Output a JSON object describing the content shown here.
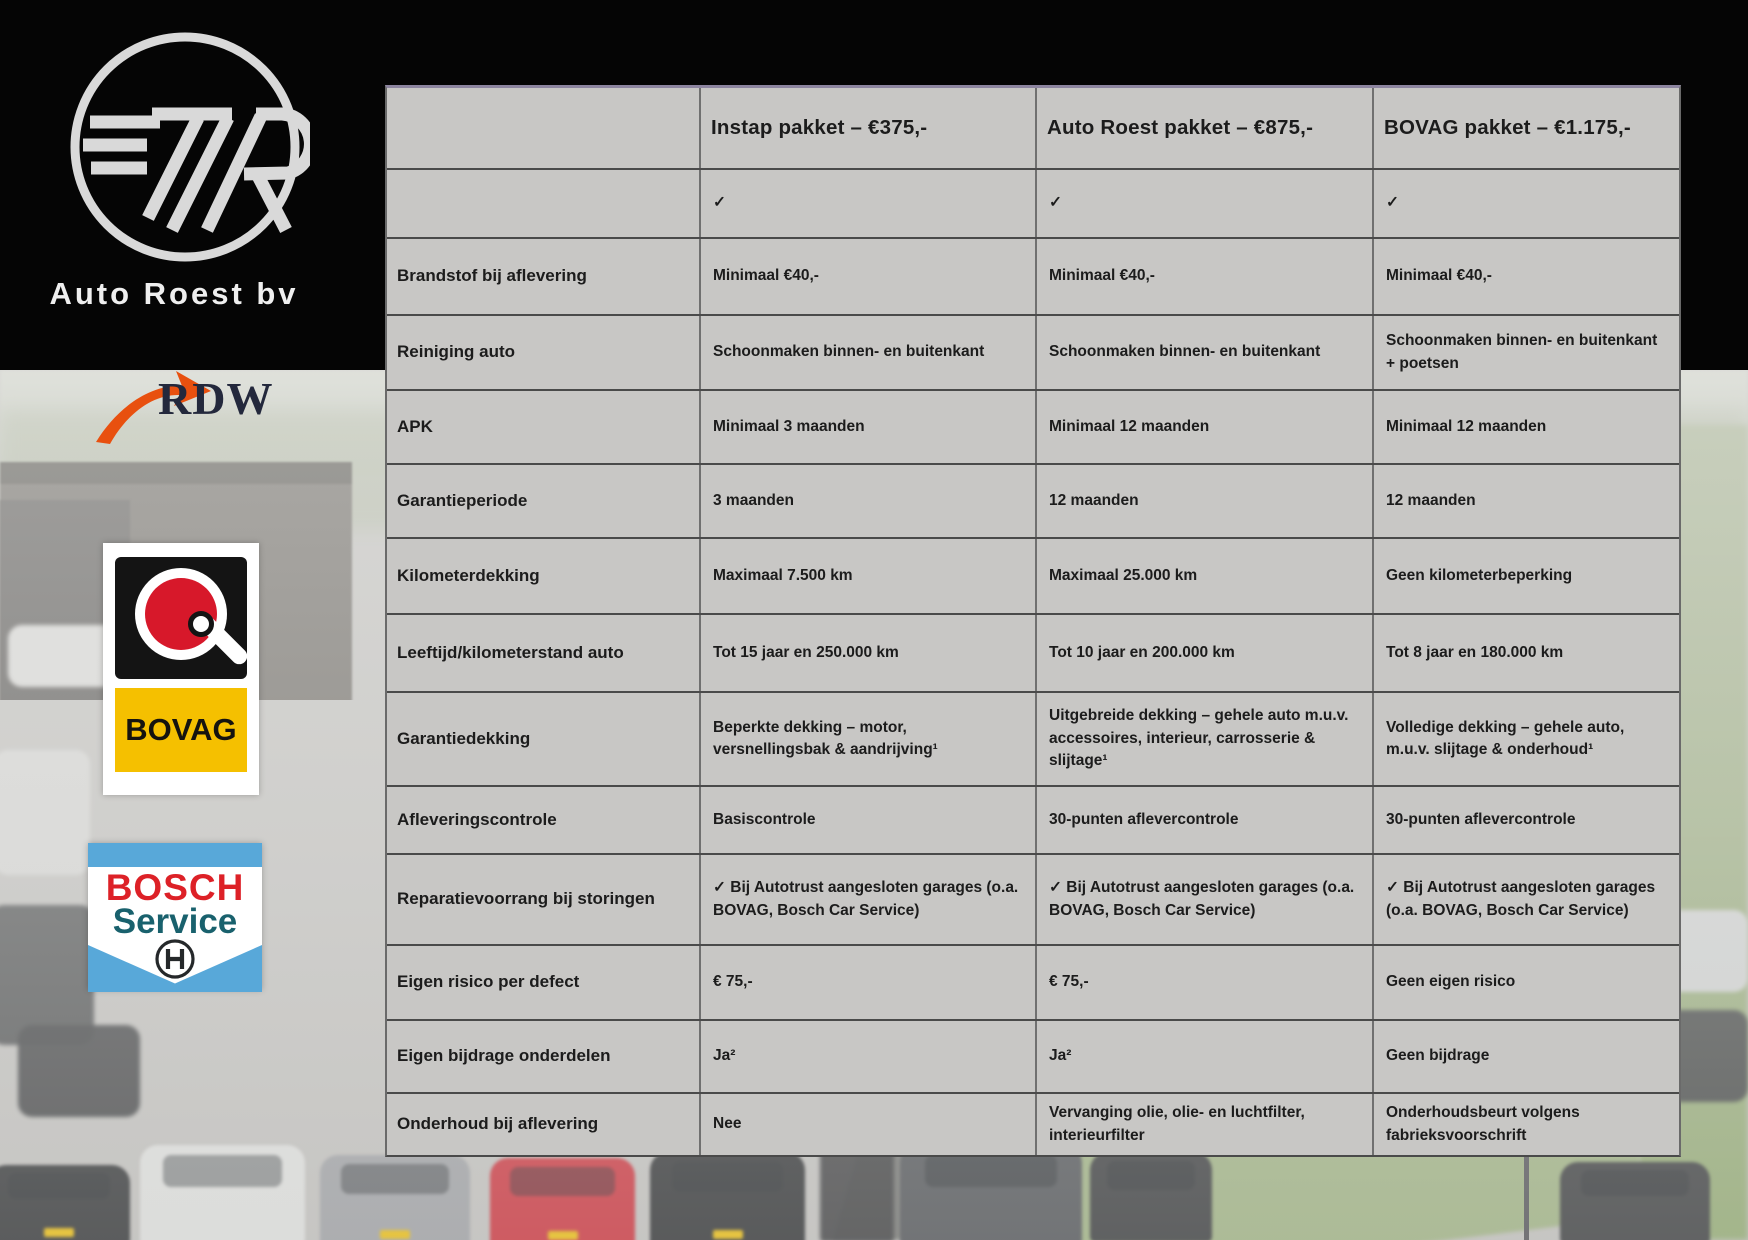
{
  "brand": {
    "name": "Auto Roest bv",
    "monogram": "7R"
  },
  "partner_logos": {
    "rdw": "RDW",
    "bovag": "BOVAG",
    "bosch_line1": "BOSCH",
    "bosch_line2": "Service"
  },
  "colors": {
    "table_background": "#c8c7c5",
    "table_border": "#4a4a4a",
    "rdw_orange": "#e8500f",
    "bovag_yellow": "#f5c000",
    "bovag_red": "#d7182a",
    "bosch_blue": "#58a8d9",
    "bosch_red": "#dd2127",
    "bosch_teal": "#19616d"
  },
  "table": {
    "header": {
      "label": "",
      "col1": "Instap pakket – €375,-",
      "col2": "Auto Roest pakket – €875,-",
      "col3": "BOVAG pakket – €1.175,-"
    },
    "rows": [
      {
        "label": "",
        "cells": [
          "✓",
          "✓",
          "✓"
        ]
      },
      {
        "label": "Brandstof bij aflevering",
        "cells": [
          "Minimaal €40,-",
          "Minimaal €40,-",
          "Minimaal €40,-"
        ]
      },
      {
        "label": "Reiniging auto",
        "cells": [
          "Schoonmaken binnen- en buitenkant",
          "Schoonmaken binnen- en buitenkant",
          "Schoonmaken binnen- en buitenkant + poetsen"
        ]
      },
      {
        "label": "APK",
        "cells": [
          "Minimaal 3 maanden",
          "Minimaal 12 maanden",
          "Minimaal 12 maanden"
        ]
      },
      {
        "label": "Garantieperiode",
        "cells": [
          "3 maanden",
          "12 maanden",
          "12 maanden"
        ]
      },
      {
        "label": "Kilometerdekking",
        "cells": [
          "Maximaal 7.500 km",
          "Maximaal 25.000 km",
          "Geen kilometerbeperking"
        ]
      },
      {
        "label": "Leeftijd/kilometerstand auto",
        "cells": [
          "Tot 15 jaar en 250.000 km",
          "Tot 10 jaar en 200.000 km",
          "Tot 8 jaar en 180.000 km"
        ]
      },
      {
        "label": "Garantiedekking",
        "cells": [
          "Beperkte dekking – motor, versnellingsbak & aandrijving¹",
          "Uitgebreide dekking – gehele auto m.u.v. accessoires, interieur, carrosserie & slijtage¹",
          "Volledige dekking – gehele auto, m.u.v. slijtage & onderhoud¹"
        ]
      },
      {
        "label": "Afleveringscontrole",
        "cells": [
          "Basiscontrole",
          "30-punten aflevercontrole",
          "30-punten aflevercontrole"
        ]
      },
      {
        "label": "Reparatievoorrang bij storingen",
        "cells": [
          "✓ Bij Autotrust aangesloten garages (o.a. BOVAG, Bosch Car Service)",
          "✓ Bij Autotrust aangesloten garages (o.a. BOVAG, Bosch Car Service)",
          "✓ Bij Autotrust aangesloten garages (o.a. BOVAG, Bosch Car Service)"
        ]
      },
      {
        "label": "Eigen risico per defect",
        "cells": [
          "€ 75,-",
          "€ 75,-",
          "Geen eigen risico"
        ]
      },
      {
        "label": "Eigen bijdrage onderdelen",
        "cells": [
          "Ja²",
          "Ja²",
          "Geen bijdrage"
        ]
      },
      {
        "label": "Onderhoud bij aflevering",
        "cells": [
          "Nee",
          "Vervanging olie, olie- en luchtfilter, interieurfilter",
          "Onderhoudsbeurt volgens fabrieksvoorschrift"
        ]
      }
    ]
  }
}
